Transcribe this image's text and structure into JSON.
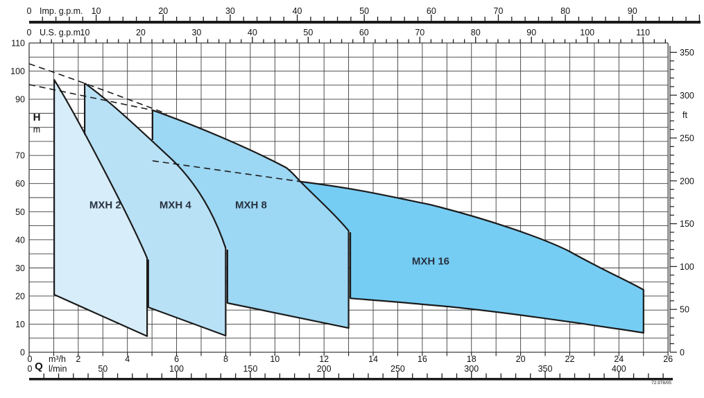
{
  "code": "72.978/05",
  "colors": {
    "mxh2": "#d7edf9",
    "mxh4": "#b9e1f6",
    "mxh8": "#9cd7f3",
    "mxh16": "#76cdf4",
    "line": "#1b1b1b",
    "grid": "#3c3c3c",
    "text": "#111111",
    "region_label": "#273240"
  },
  "chart_data": {
    "type": "area",
    "description": "Pump family operating-range chart: head H (m / ft) versus flow Q (m3/h, l/min, Imp g.p.m., U.S. g.p.m.) with selection envelopes for MXH 2, MXH 4, MXH 8 and MXH 16 pumps. Dashed lines mark upper performance limits.",
    "axes": {
      "imp": {
        "zero": "0",
        "title": "Imp. g.p.m.",
        "labels": [
          10,
          20,
          30,
          40,
          50,
          60,
          70,
          80,
          90
        ],
        "minor_step": 2,
        "max_tick": 100,
        "m3h_per_unit": 0.27276
      },
      "us": {
        "zero": "0",
        "title": "U.S. g.p.m.",
        "labels": [
          10,
          20,
          30,
          40,
          50,
          60,
          70,
          80,
          90,
          100,
          110
        ],
        "minor_step": 2,
        "max_tick": 114,
        "m3h_per_unit": 0.22712
      },
      "h": {
        "title": "H",
        "unit": "m",
        "labels": [
          110,
          100,
          90,
          70,
          60,
          50,
          40,
          30,
          20,
          10,
          0
        ],
        "grid_step": 5,
        "max": 110
      },
      "ft": {
        "unit": "ft",
        "labels": [
          0,
          50,
          100,
          150,
          200,
          250,
          300,
          350
        ],
        "minor_step": 10,
        "max_tick": 350,
        "m_per_ft": 0.3048
      },
      "q": {
        "zero": "0",
        "title": "Q",
        "unit": "m³/h",
        "labels": [
          2,
          4,
          6,
          8,
          10,
          12,
          14,
          16,
          18,
          20,
          22,
          24,
          26
        ],
        "grid_step": 1,
        "max": 26
      },
      "lmin": {
        "zero": "0",
        "unit": "l/min",
        "labels": [
          50,
          100,
          150,
          200,
          250,
          300,
          350,
          400
        ],
        "minor_step": 10,
        "max_tick": 430,
        "lmin_per_m3h": 16.6667
      }
    },
    "regions": [
      {
        "name": "MXH 16",
        "color_key": "mxh16",
        "label_q": 16.34,
        "label_h": 32.4,
        "q_range_m3h": [
          11.0,
          25.0
        ],
        "h_range_m": [
          6.9,
          60.7
        ],
        "fill_path": [
          [
            "M",
            11.04,
            60.7
          ],
          [
            "C",
            13.49,
            58.0,
            14.62,
            55.5,
            16.31,
            52.5
          ],
          [
            "C",
            18.57,
            47.6,
            20.83,
            40.9,
            21.96,
            36.0
          ],
          [
            "C",
            23.37,
            29.1,
            24.36,
            25.4,
            25.0,
            22.2
          ],
          [
            "L",
            25.0,
            6.9
          ],
          [
            "C",
            22.81,
            9.9,
            18.57,
            15.3,
            16.31,
            16.8
          ],
          [
            "C",
            15.18,
            17.8,
            14.06,
            18.5,
            13.07,
            19.2
          ],
          [
            "L",
            13.07,
            42.7
          ],
          [
            "C",
            12.36,
            49.6,
            11.57,
            55.7,
            11.04,
            60.7
          ],
          [
            "Z"
          ]
        ],
        "stroke_paths": [
          [
            [
              "M",
              11.04,
              60.7
            ],
            [
              "C",
              13.49,
              58.0,
              14.62,
              55.5,
              16.31,
              52.5
            ],
            [
              "C",
              18.57,
              47.6,
              20.83,
              40.9,
              21.96,
              36.0
            ],
            [
              "C",
              23.37,
              29.1,
              24.36,
              25.4,
              25.0,
              22.2
            ],
            [
              "L",
              25.0,
              6.9
            ],
            [
              "C",
              22.81,
              9.9,
              18.57,
              15.3,
              16.31,
              16.8
            ],
            [
              "C",
              15.18,
              17.8,
              14.06,
              18.5,
              13.07,
              19.2
            ],
            [
              "L",
              13.07,
              42.7
            ]
          ]
        ]
      },
      {
        "name": "MXH 8",
        "color_key": "mxh8",
        "label_q": 9.03,
        "label_h": 52.4,
        "q_range_m3h": [
          5.0,
          13.0
        ],
        "h_range_m": [
          8.6,
          86.1
        ],
        "fill_path": [
          [
            "M",
            5.02,
            86.1
          ],
          [
            "C",
            6.72,
            80.9,
            8.98,
            72.5,
            10.47,
            65.6
          ],
          [
            "C",
            10.78,
            63.4,
            10.9,
            61.9,
            11.04,
            60.7
          ],
          [
            "C",
            11.66,
            55.2,
            12.36,
            49.8,
            13.0,
            43.2
          ],
          [
            "L",
            13.0,
            8.6
          ],
          [
            "L",
            8.07,
            17.5
          ],
          [
            "L",
            8.07,
            36.5
          ],
          [
            "C",
            7.28,
            52.5,
            6.01,
            66.8,
            5.02,
            75.5
          ],
          [
            "Z"
          ]
        ],
        "stroke_paths": [
          [
            [
              "M",
              5.02,
              86.1
            ],
            [
              "C",
              6.72,
              80.9,
              8.98,
              72.5,
              10.47,
              65.6
            ],
            [
              "C",
              10.78,
              63.4,
              10.9,
              61.9,
              11.04,
              60.7
            ],
            [
              "C",
              11.66,
              55.2,
              12.36,
              49.8,
              13.0,
              43.2
            ],
            [
              "L",
              13.0,
              8.6
            ],
            [
              "L",
              8.07,
              17.5
            ],
            [
              "L",
              8.07,
              36.5
            ]
          ],
          [
            [
              "M",
              5.02,
              86.1
            ],
            [
              "L",
              5.02,
              75.5
            ]
          ]
        ]
      },
      {
        "name": "MXH 4",
        "color_key": "mxh4",
        "label_q": 5.95,
        "label_h": 52.4,
        "q_range_m3h": [
          2.26,
          8.0
        ],
        "h_range_m": [
          5.9,
          95.7
        ],
        "fill_path": [
          [
            "M",
            2.26,
            95.7
          ],
          [
            "C",
            3.33,
            89.0,
            4.6,
            78.4,
            5.81,
            68.6
          ],
          [
            "C",
            6.8,
            60.2,
            7.51,
            49.8,
            8.0,
            37.0
          ],
          [
            "L",
            8.0,
            5.9
          ],
          [
            "L",
            4.85,
            16.0
          ],
          [
            "L",
            4.85,
            33.0
          ],
          [
            "C",
            4.35,
            42.9,
            3.25,
            62.1,
            2.29,
            77.4
          ],
          [
            "Z"
          ]
        ],
        "stroke_paths": [
          [
            [
              "M",
              2.26,
              95.7
            ],
            [
              "C",
              3.33,
              89.0,
              4.6,
              78.4,
              5.81,
              68.6
            ],
            [
              "C",
              6.8,
              60.2,
              7.51,
              49.8,
              8.0,
              37.0
            ],
            [
              "L",
              8.0,
              5.9
            ],
            [
              "L",
              4.85,
              16.0
            ],
            [
              "L",
              4.85,
              33.0
            ]
          ],
          [
            [
              "M",
              2.26,
              95.7
            ],
            [
              "L",
              2.26,
              77.4
            ]
          ]
        ]
      },
      {
        "name": "MXH 2",
        "color_key": "mxh2",
        "label_q": 3.1,
        "label_h": 52.4,
        "q_range_m3h": [
          1.0,
          4.8
        ],
        "h_range_m": [
          5.7,
          96.9
        ],
        "fill_path": [
          [
            "M",
            1.02,
            96.9
          ],
          [
            "C",
            1.86,
            85.3,
            4.09,
            48.1,
            4.8,
            33.5
          ],
          [
            "L",
            4.8,
            5.7
          ],
          [
            "L",
            1.02,
            20.5
          ],
          [
            "Z"
          ]
        ],
        "stroke_paths": [
          [
            [
              "M",
              1.02,
              96.9
            ],
            [
              "C",
              1.86,
              85.3,
              4.09,
              48.1,
              4.8,
              33.5
            ],
            [
              "L",
              4.8,
              5.7
            ],
            [
              "L",
              1.02,
              20.5
            ],
            [
              "Z"
            ]
          ]
        ]
      }
    ],
    "dashed_lines": [
      [
        [
          "M",
          0,
          102.6
        ],
        [
          "Q",
          2.48,
          95.2,
          5.6,
          84.8
        ]
      ],
      [
        [
          "M",
          0,
          95.2
        ],
        [
          "L",
          5.02,
          86.1
        ]
      ],
      [
        [
          "M",
          5.02,
          68.1
        ],
        [
          "L",
          11.04,
          60.7
        ]
      ]
    ]
  }
}
